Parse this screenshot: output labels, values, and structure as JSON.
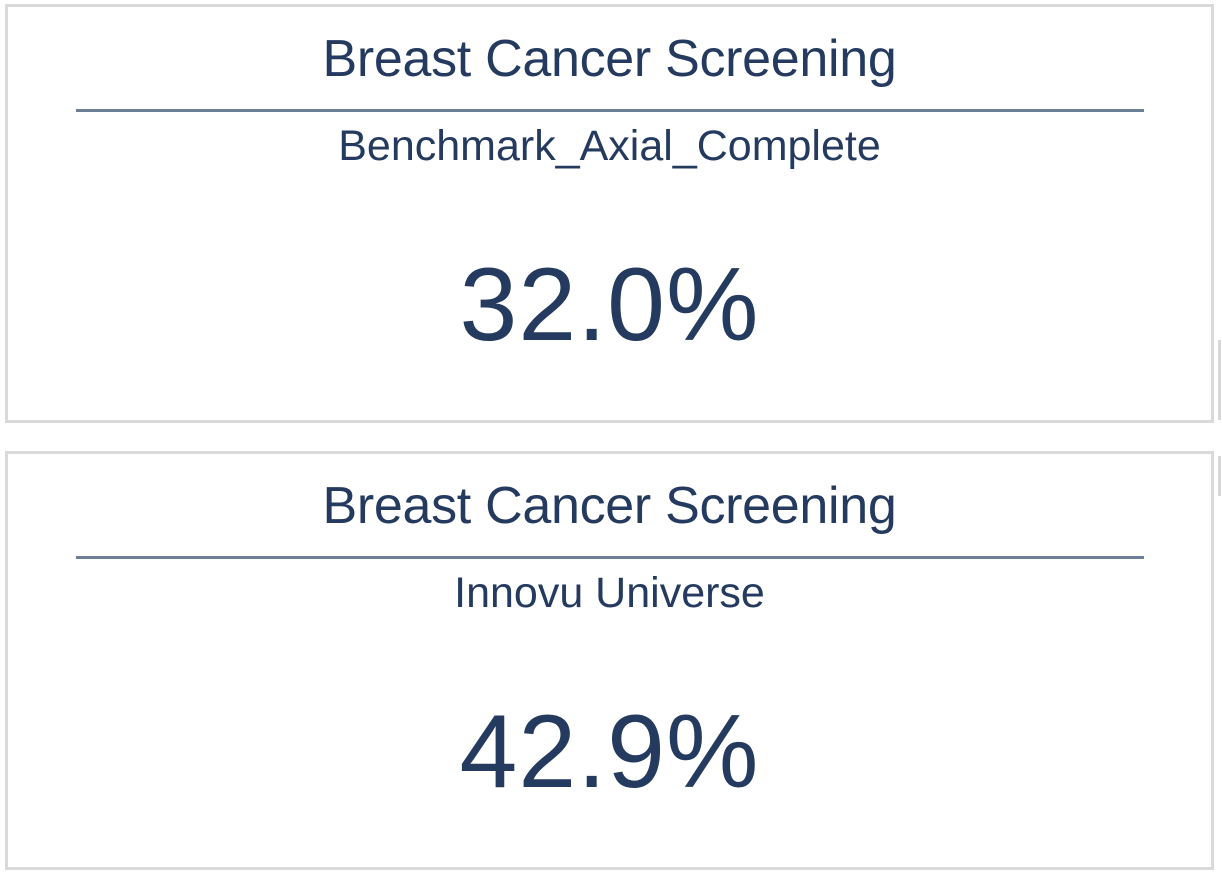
{
  "cards": [
    {
      "title": "Breast Cancer Screening",
      "subtitle": "Benchmark_Axial_Complete",
      "value": "32.0%",
      "value_fraction": 0.32
    },
    {
      "title": "Breast Cancer Screening",
      "subtitle": "Innovu Universe",
      "value": "42.9%",
      "value_fraction": 0.429
    }
  ],
  "colors": {
    "text": "#243a5e",
    "divider": "#6b7f95",
    "card_border": "#dadada",
    "background": "#ffffff"
  }
}
